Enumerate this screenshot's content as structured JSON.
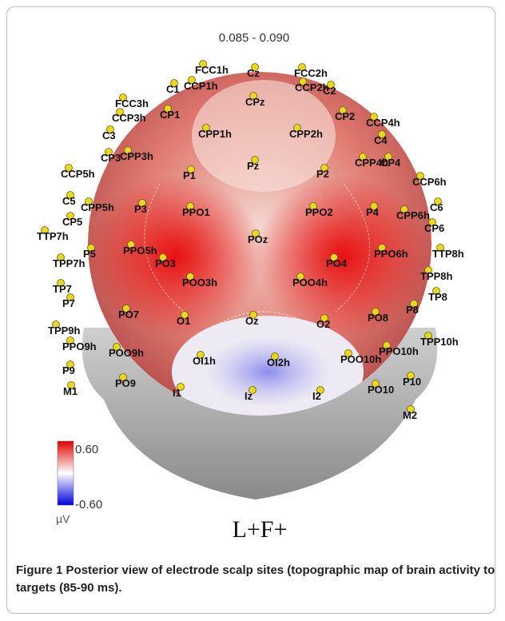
{
  "title": "0.085 - 0.090",
  "electrodes": [
    "FCC1h",
    "Cz",
    "FCC2h",
    "C1",
    "CCP1h",
    "CCP2h",
    "C2",
    "CPz",
    "FCC3h",
    "CP1",
    "CP2",
    "CCP4h",
    "CCP3h",
    "CPP1h",
    "CPP2h",
    "C4",
    "C3",
    "CP3",
    "CPP3h",
    "CPP4h",
    "CP4",
    "Pz",
    "P1",
    "P2",
    "CCP5h",
    "CCP6h",
    "C5",
    "CPP5h",
    "P3",
    "PPO1",
    "PPO2",
    "P4",
    "C6",
    "CPP6h",
    "CP5",
    "CP6",
    "TTP7h",
    "P5",
    "PPO5h",
    "POz",
    "PPO6h",
    "TTP8h",
    "TPP7h",
    "PO3",
    "PO4",
    "TPP8h",
    "TP7",
    "POO3h",
    "POO4h",
    "TP8",
    "P7",
    "P8",
    "PO7",
    "O1",
    "Oz",
    "O2",
    "PO8",
    "TPP9h",
    "PPO9h",
    "TPP10h",
    "POO9h",
    "OI1h",
    "OI2h",
    "POO10h",
    "PPO10h",
    "P9",
    "PO9",
    "P10",
    "PO10",
    "I1",
    "Iz",
    "I2",
    "M1",
    "M2"
  ],
  "colorbar": {
    "max": "0.60",
    "min": "-0.60",
    "unit": "µV"
  },
  "condition": "L+F+",
  "caption": {
    "label": "Figure 1",
    "text": "Posterior view of electrode scalp sites (topographic map of brain activity to targets (85-90 ms)."
  }
}
